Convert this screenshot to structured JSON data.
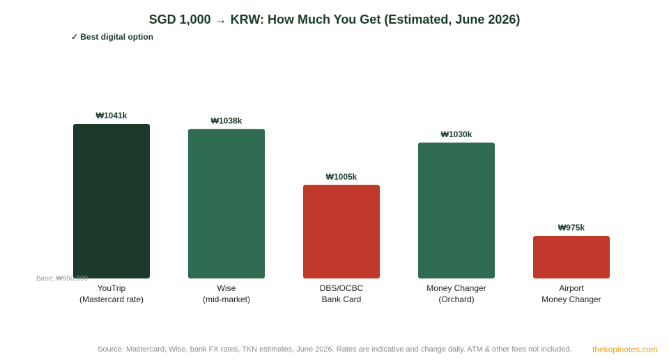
{
  "title": "SGD 1,000 → KRW: How Much You Get (Estimated, June 2026)",
  "legend_note": "✓ Best digital option",
  "source_note": "Source: Mastercard, Wise, bank FX rates, TKN estimates, June 2026. Rates are indicative and change daily. ATM & other fees not included.",
  "brand": "thekopinotes.com",
  "colors": {
    "best": "#1b3a29",
    "good": "#2e6b50",
    "poor": "#c0392b",
    "label": "#1a3a28"
  },
  "chart_data": {
    "type": "bar",
    "title": "SGD 1,000 → KRW: How Much You Get (Estimated, June 2026)",
    "baseline_label": "Base: ₩950,000",
    "ylim": [
      950,
      1050
    ],
    "grid": false,
    "categories": [
      [
        "YouTrip",
        "(Mastercard rate)"
      ],
      [
        "Wise",
        "(mid-market)"
      ],
      [
        "DBS/OCBC",
        "Bank Card"
      ],
      [
        "Money Changer",
        "(Orchard)"
      ],
      [
        "Airport",
        "Money Changer"
      ]
    ],
    "values": [
      1041,
      1038,
      1005,
      1030,
      975
    ],
    "value_labels": [
      "₩1041k",
      "₩1038k",
      "₩1005k",
      "₩1030k",
      "₩975k"
    ],
    "bar_colors": [
      "best",
      "good",
      "poor",
      "good",
      "poor"
    ]
  }
}
